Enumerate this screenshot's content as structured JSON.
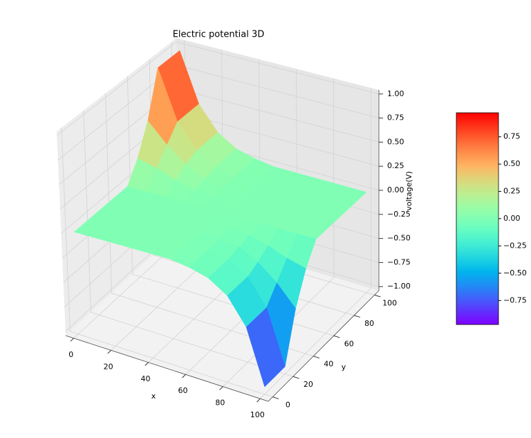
{
  "chart_data": {
    "type": "surface3d",
    "title": "Electric potential 3D",
    "xlabel": "x",
    "ylabel": "y",
    "zlabel": "voltage(V)",
    "colormap": "rainbow",
    "x": [
      0,
      10,
      20,
      30,
      40,
      50,
      60,
      70,
      80,
      90,
      100
    ],
    "y": [
      0,
      10,
      20,
      30,
      40,
      50,
      60,
      70,
      80,
      90,
      100
    ],
    "z": [
      [
        0,
        0,
        0,
        0,
        0,
        0,
        -0.03,
        -0.08,
        -0.2,
        -0.45,
        -0.97
      ],
      [
        0,
        0,
        0,
        0,
        0,
        0,
        -0.03,
        -0.08,
        -0.2,
        -0.45,
        -0.97
      ],
      [
        0,
        0,
        0,
        0,
        0,
        0,
        -0.03,
        -0.08,
        -0.2,
        -0.45,
        -0.97
      ],
      [
        0,
        0,
        0,
        0,
        0,
        0,
        -0.02,
        -0.05,
        -0.15,
        -0.3,
        -0.5
      ],
      [
        0,
        0,
        0,
        0,
        0,
        0,
        -0.01,
        -0.03,
        -0.08,
        -0.15,
        -0.2
      ],
      [
        0,
        0,
        0,
        0,
        0,
        0,
        0,
        0,
        0,
        0,
        0
      ],
      [
        0.2,
        0.15,
        0.08,
        0.03,
        0.01,
        0,
        0,
        0,
        0,
        0,
        0
      ],
      [
        0.5,
        0.3,
        0.15,
        0.05,
        0.02,
        0,
        0,
        0,
        0,
        0,
        0
      ],
      [
        0.97,
        0.45,
        0.2,
        0.08,
        0.03,
        0,
        0,
        0,
        0,
        0,
        0
      ],
      [
        0.97,
        0.45,
        0.2,
        0.08,
        0.03,
        0,
        0,
        0,
        0,
        0,
        0
      ],
      [
        0.97,
        0.45,
        0.2,
        0.08,
        0.03,
        0,
        0,
        0,
        0,
        0,
        0
      ]
    ],
    "xlim": [
      0,
      100
    ],
    "ylim": [
      0,
      100
    ],
    "zlim": [
      -1,
      1
    ],
    "xticks": [
      0,
      20,
      40,
      60,
      80,
      100
    ],
    "yticks": [
      0,
      20,
      40,
      60,
      80,
      100
    ],
    "zticks": [
      {
        "value": -1,
        "label": "−1.00"
      },
      {
        "value": -0.75,
        "label": "−0.75"
      },
      {
        "value": -0.5,
        "label": "−0.50"
      },
      {
        "value": -0.25,
        "label": "−0.25"
      },
      {
        "value": 0,
        "label": "0.00"
      },
      {
        "value": 0.25,
        "label": "0.25"
      },
      {
        "value": 0.5,
        "label": "0.50"
      },
      {
        "value": 0.75,
        "label": "0.75"
      },
      {
        "value": 1,
        "label": "1.00"
      }
    ],
    "clim": [
      -0.97,
      0.97
    ],
    "cticks": [
      {
        "value": -0.75,
        "label": "−0.75"
      },
      {
        "value": -0.5,
        "label": "−0.50"
      },
      {
        "value": -0.25,
        "label": "−0.25"
      },
      {
        "value": 0,
        "label": "0.00"
      },
      {
        "value": 0.25,
        "label": "0.25"
      },
      {
        "value": 0.5,
        "label": "0.50"
      },
      {
        "value": 0.75,
        "label": "0.75"
      }
    ]
  }
}
